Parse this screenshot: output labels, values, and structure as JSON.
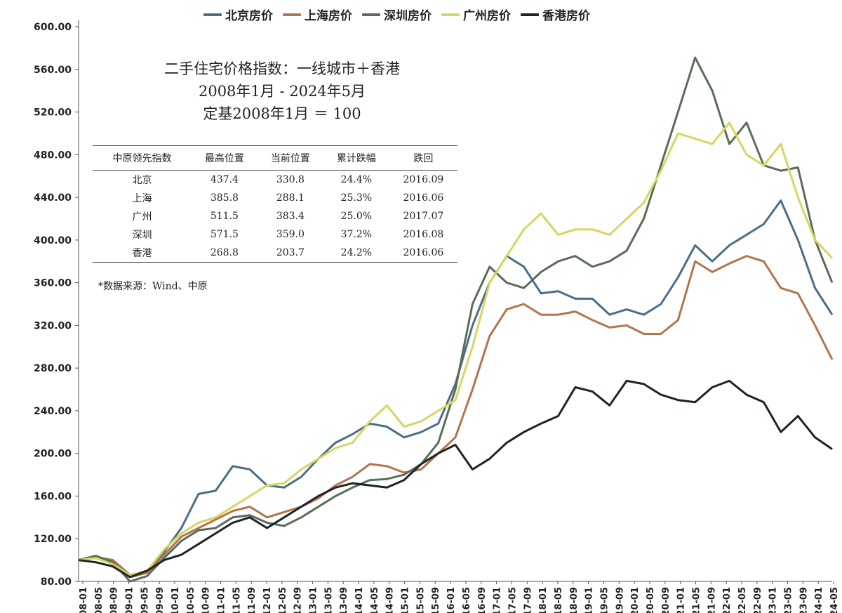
{
  "chart_data": {
    "type": "line",
    "ylim": [
      80,
      600
    ],
    "yticks": [
      "80.00",
      "120.00",
      "160.00",
      "200.00",
      "240.00",
      "280.00",
      "320.00",
      "360.00",
      "400.00",
      "440.00",
      "480.00",
      "520.00",
      "560.00",
      "600.00"
    ],
    "xticks": [
      "08-01",
      "08-05",
      "08-09",
      "09-01",
      "09-05",
      "09-09",
      "10-01",
      "10-05",
      "10-09",
      "11-01",
      "11-05",
      "11-09",
      "12-01",
      "12-05",
      "12-09",
      "13-01",
      "13-05",
      "13-09",
      "14-01",
      "14-05",
      "14-09",
      "15-01",
      "15-05",
      "15-09",
      "16-01",
      "16-05",
      "16-09",
      "17-01",
      "17-05",
      "17-09",
      "18-01",
      "18-05",
      "18-09",
      "19-01",
      "19-05",
      "19-09",
      "20-01",
      "20-05",
      "20-09",
      "21-01",
      "21-05",
      "21-09",
      "22-01",
      "22-05",
      "22-09",
      "23-01",
      "23-05",
      "23-09",
      "24-01",
      "24-05"
    ],
    "series": [
      {
        "name": "北京房价",
        "color": "#4a6e8a",
        "values": [
          100,
          102,
          100,
          86,
          90,
          108,
          130,
          162,
          165,
          188,
          185,
          170,
          168,
          178,
          195,
          210,
          218,
          228,
          225,
          215,
          220,
          228,
          265,
          320,
          360,
          385,
          375,
          350,
          352,
          345,
          345,
          330,
          335,
          330,
          340,
          365,
          395,
          380,
          395,
          405,
          415,
          437,
          400,
          355,
          330
        ]
      },
      {
        "name": "上海房价",
        "color": "#b5744a",
        "values": [
          100,
          103,
          100,
          84,
          88,
          105,
          122,
          130,
          138,
          146,
          150,
          140,
          145,
          150,
          158,
          170,
          178,
          190,
          188,
          182,
          185,
          200,
          215,
          260,
          310,
          335,
          340,
          330,
          330,
          333,
          325,
          318,
          320,
          312,
          312,
          325,
          380,
          370,
          378,
          385,
          380,
          355,
          350,
          320,
          288
        ]
      },
      {
        "name": "深圳房价",
        "color": "#5a6d58",
        "values": [
          100,
          104,
          98,
          80,
          85,
          102,
          118,
          128,
          130,
          140,
          142,
          135,
          132,
          140,
          150,
          160,
          168,
          175,
          176,
          180,
          190,
          210,
          260,
          340,
          375,
          360,
          355,
          370,
          380,
          385,
          375,
          380,
          390,
          420,
          470,
          520,
          571,
          540,
          490,
          510,
          470,
          465,
          468,
          400,
          360
        ]
      },
      {
        "name": "广州房价",
        "color": "#d6d660",
        "values": [
          100,
          102,
          96,
          86,
          90,
          110,
          125,
          135,
          140,
          150,
          160,
          170,
          172,
          185,
          195,
          205,
          210,
          230,
          245,
          225,
          230,
          240,
          250,
          300,
          360,
          385,
          410,
          425,
          405,
          410,
          410,
          405,
          420,
          435,
          465,
          500,
          495,
          490,
          510,
          480,
          470,
          490,
          440,
          400,
          383
        ]
      },
      {
        "name": "香港房价",
        "color": "#1e2326",
        "values": [
          100,
          98,
          94,
          84,
          90,
          100,
          105,
          115,
          125,
          135,
          140,
          130,
          140,
          150,
          160,
          168,
          172,
          170,
          168,
          175,
          190,
          200,
          208,
          185,
          195,
          210,
          220,
          228,
          235,
          262,
          258,
          245,
          268,
          265,
          255,
          250,
          248,
          262,
          268,
          255,
          248,
          220,
          235,
          215,
          204
        ]
      }
    ]
  },
  "panel": {
    "title_line1": "二手住宅价格指数：一线城市＋香港",
    "title_line2": "2008年1月 - 2024年5月",
    "title_line3": "定基2008年1月 ＝ 100",
    "headers": [
      "中原领先指数",
      "最高位置",
      "当前位置",
      "累计跌幅",
      "跌回"
    ],
    "rows": [
      [
        "北京",
        "437.4",
        "330.8",
        "24.4%",
        "2016.09"
      ],
      [
        "上海",
        "385.8",
        "288.1",
        "25.3%",
        "2016.06"
      ],
      [
        "广州",
        "511.5",
        "383.4",
        "25.0%",
        "2017.07"
      ],
      [
        "深圳",
        "571.5",
        "359.0",
        "37.2%",
        "2016.08"
      ],
      [
        "香港",
        "268.8",
        "203.7",
        "24.2%",
        "2016.06"
      ]
    ],
    "source": "*数据来源：Wind、中原"
  }
}
